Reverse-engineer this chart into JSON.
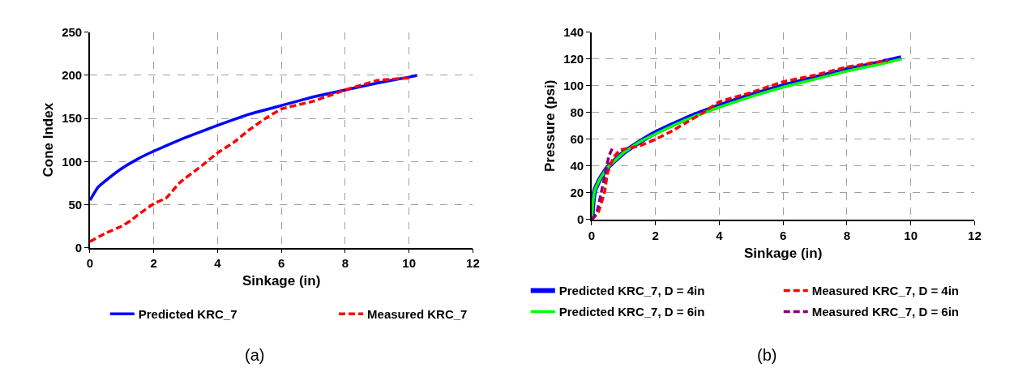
{
  "chart_data": [
    {
      "type": "line",
      "xlabel": "Sinkage (in)",
      "ylabel": "Cone Index",
      "xlim": [
        0,
        12
      ],
      "xticks": [
        0,
        2,
        4,
        6,
        8,
        10,
        12
      ],
      "ylim": [
        0,
        250
      ],
      "yticks": [
        0,
        50,
        100,
        150,
        200,
        250
      ],
      "grid": true,
      "legend": "bottom",
      "annotations": [
        "(a)"
      ],
      "series": [
        {
          "name": "Predicted KRC_7",
          "color": "#0000ff",
          "line_style": "solid",
          "x": [
            0,
            0.25,
            0.5,
            1,
            1.5,
            2,
            3,
            4,
            5,
            6,
            7,
            8,
            9,
            10,
            10.25
          ],
          "values": [
            55,
            70,
            78,
            92,
            103,
            112,
            128,
            142,
            155,
            165,
            175,
            183,
            191,
            198,
            200
          ]
        },
        {
          "name": "Measured KRC_7",
          "color": "#ff0000",
          "line_style": "dashed",
          "x": [
            0,
            0.5,
            1,
            1.3,
            1.5,
            2,
            2.4,
            2.8,
            3.5,
            4,
            4.5,
            5,
            5.5,
            6,
            7,
            8,
            9,
            10
          ],
          "values": [
            7,
            17,
            25,
            32,
            38,
            51,
            58,
            75,
            95,
            110,
            122,
            137,
            150,
            161,
            170,
            183,
            194,
            197
          ]
        }
      ]
    },
    {
      "type": "line",
      "xlabel": "Sinkage (in)",
      "ylabel": "Pressure (psi)",
      "xlim": [
        0,
        12
      ],
      "xticks": [
        0,
        2,
        4,
        6,
        8,
        10,
        12
      ],
      "ylim": [
        0,
        140
      ],
      "yticks": [
        0,
        20,
        40,
        60,
        80,
        100,
        120,
        140
      ],
      "grid": true,
      "legend": "bottom",
      "annotations": [
        "(b)"
      ],
      "series": [
        {
          "name": "Predicted KRC_7, D = 4in",
          "color": "#0000ff",
          "line_style": "solid",
          "x": [
            0,
            0.05,
            0.1,
            0.25,
            0.5,
            1,
            1.5,
            2,
            3,
            4,
            5,
            6,
            7,
            8,
            9,
            9.7
          ],
          "values": [
            0,
            15,
            22,
            30,
            39,
            50,
            58,
            65,
            76,
            85,
            93,
            100,
            106,
            112,
            117,
            121
          ]
        },
        {
          "name": "Measured KRC_7, D = 4in",
          "color": "#ff0000",
          "line_style": "dashed",
          "x": [
            0,
            0.2,
            0.4,
            0.5,
            0.7,
            0.9,
            1.5,
            2,
            2.5,
            3,
            3.5,
            4,
            5,
            6,
            7,
            8,
            9,
            9.3
          ],
          "values": [
            0,
            5,
            20,
            35,
            47,
            52,
            55,
            60,
            66,
            73,
            80,
            88,
            95,
            103,
            108,
            114,
            118,
            119
          ]
        },
        {
          "name": "Predicted KRC_7, D = 6in",
          "color": "#00ff00",
          "line_style": "solid",
          "x": [
            0,
            0.05,
            0.1,
            0.25,
            0.5,
            1,
            1.5,
            2,
            3,
            4,
            5,
            6,
            7,
            8,
            9,
            9.7
          ],
          "values": [
            0,
            15,
            22,
            30,
            39,
            50,
            58,
            64,
            75,
            84,
            92,
            99,
            105,
            111,
            116,
            120
          ]
        },
        {
          "name": "Measured KRC_7, D = 6in",
          "color": "#800080",
          "line_style": "dashed",
          "x": [
            0,
            0.15,
            0.3,
            0.45,
            0.55,
            0.68
          ],
          "values": [
            0,
            5,
            20,
            38,
            48,
            55
          ]
        }
      ]
    }
  ]
}
